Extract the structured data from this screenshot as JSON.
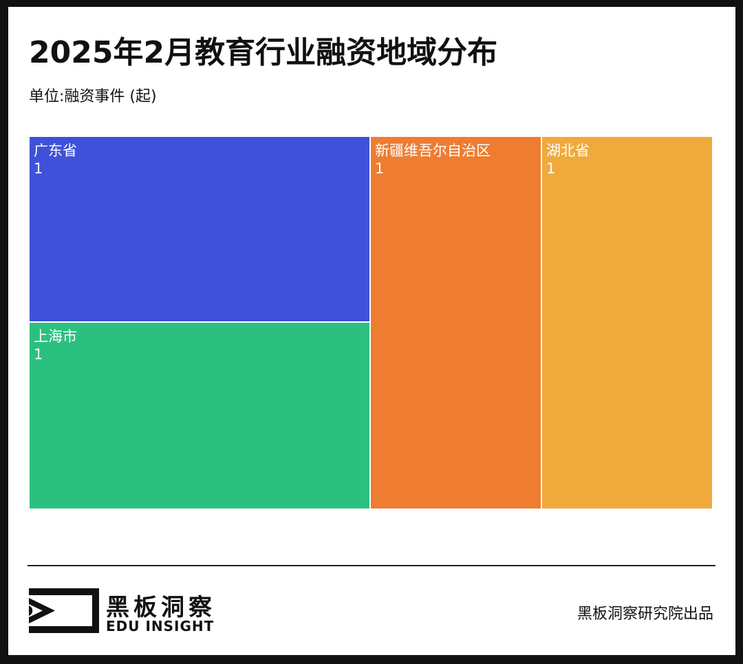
{
  "header": {
    "title": "2025年2月教育行业融资地域分布",
    "subtitle": "单位:融资事件 (起)"
  },
  "chart_data": {
    "type": "treemap",
    "title": "2025年2月教育行业融资地域分布",
    "unit": "单位:融资事件 (起)",
    "items": [
      {
        "name": "广东省",
        "value": 1,
        "color": "#4051D9"
      },
      {
        "name": "上海市",
        "value": 1,
        "color": "#2CC080"
      },
      {
        "name": "新疆维吾尔自治区",
        "value": 1,
        "color": "#EE7D31"
      },
      {
        "name": "湖北省",
        "value": 1,
        "color": "#F0AA3C"
      }
    ]
  },
  "footer": {
    "brand_cn": "黑板洞察",
    "brand_en": "EDU INSIGHT",
    "credit": "黑板洞察研究院出品"
  },
  "logo": {
    "icon": "eye-play-logo-icon",
    "color": "#111111"
  }
}
